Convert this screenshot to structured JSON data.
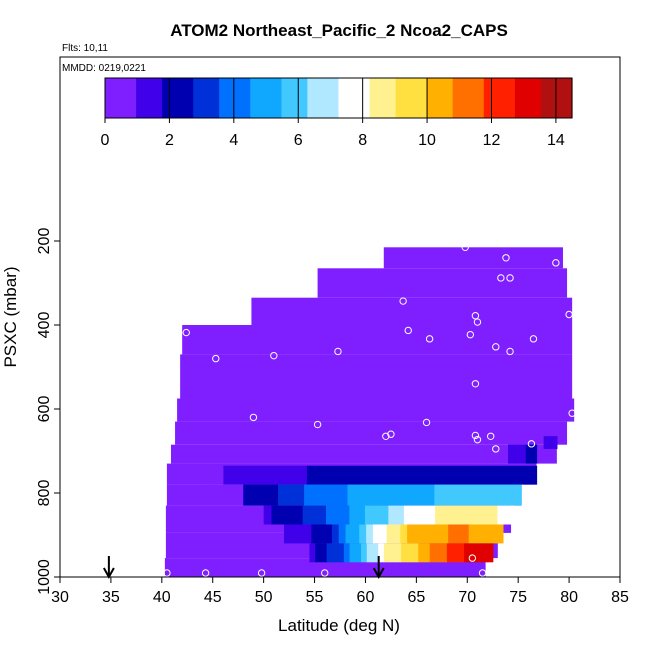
{
  "chart_data": {
    "type": "heatmap",
    "title": "ATOM2 Northeast_Pacific_2 Ncoa2_CAPS",
    "flights_label": "Flts: 10,11",
    "mmdd_label": "MMDD: 0219,0221",
    "xlabel": "Latitude (deg N)",
    "ylabel": "PSXC (mbar)",
    "xlim": [
      30,
      85
    ],
    "ylim": [
      1000,
      0
    ],
    "x_ticks": [
      "30",
      "35",
      "40",
      "45",
      "50",
      "55",
      "60",
      "65",
      "70",
      "75",
      "80",
      "85"
    ],
    "y_ticks": [
      "200",
      "400",
      "600",
      "800",
      "1000"
    ],
    "colorbar": {
      "range": [
        0,
        14.5
      ],
      "ticks": [
        "0",
        "2",
        "4",
        "6",
        "8",
        "10",
        "12",
        "14"
      ],
      "colors": [
        "#7f1fff",
        "#4000ea",
        "#0000b0",
        "#0030d8",
        "#0070ff",
        "#10a8ff",
        "#40c8ff",
        "#b0e8ff",
        "#ffffff",
        "#fff090",
        "#ffe040",
        "#ffb000",
        "#ff7000",
        "#ff2000",
        "#e00000",
        "#b01010"
      ]
    },
    "coverage_background_value": 0,
    "coverage": [
      {
        "lat": [
          40.3,
          71.8
        ],
        "p": [
          955,
          1000
        ]
      },
      {
        "lat": [
          40.4,
          73.0
        ],
        "p": [
          895,
          955
        ]
      },
      {
        "lat": [
          40.4,
          74.3
        ],
        "p": [
          830,
          895
        ]
      },
      {
        "lat": [
          40.5,
          75.3
        ],
        "p": [
          780,
          830
        ]
      },
      {
        "lat": [
          40.5,
          76.8
        ],
        "p": [
          730,
          780
        ]
      },
      {
        "lat": [
          40.9,
          78.8
        ],
        "p": [
          685,
          730
        ]
      },
      {
        "lat": [
          41.3,
          79.8
        ],
        "p": [
          630,
          685
        ]
      },
      {
        "lat": [
          41.5,
          80.5
        ],
        "p": [
          575,
          630
        ]
      },
      {
        "lat": [
          41.8,
          80.3
        ],
        "p": [
          470,
          575
        ]
      },
      {
        "lat": [
          42.0,
          80.3
        ],
        "p": [
          400,
          470
        ]
      },
      {
        "lat": [
          48.8,
          80.3
        ],
        "p": [
          335,
          400
        ]
      },
      {
        "lat": [
          55.3,
          79.8
        ],
        "p": [
          265,
          335
        ]
      },
      {
        "lat": [
          61.8,
          79.4
        ],
        "p": [
          215,
          265
        ]
      }
    ],
    "profiles": [
      {
        "p": [
          665,
          695
        ],
        "lat": [
          77.5,
          78.8
        ],
        "values": [
          1.5,
          1.0
        ]
      },
      {
        "p": [
          685,
          730
        ],
        "lat": [
          74.0,
          76.8
        ],
        "values": [
          1.2,
          2.2
        ]
      },
      {
        "p": [
          735,
          780
        ],
        "lat": [
          44.0,
          76.8
        ],
        "values": [
          0.6,
          1.6,
          2.3,
          2.3,
          2.6
        ]
      },
      {
        "p": [
          780,
          830
        ],
        "lat": [
          48.0,
          75.3
        ],
        "values": [
          1.8,
          3.8,
          5.2,
          5.5,
          5.8
        ]
      },
      {
        "p": [
          830,
          875
        ],
        "lat": [
          50.0,
          74.5
        ],
        "values": [
          1.5,
          3.0,
          5.2,
          7.8,
          8.6,
          8.0
        ]
      },
      {
        "p": [
          875,
          920
        ],
        "lat": [
          52.0,
          73.5
        ],
        "values": [
          0.8,
          2.5,
          7.0,
          10.5,
          11.0,
          10.2
        ]
      },
      {
        "p": [
          920,
          965
        ],
        "lat": [
          54.5,
          72.5
        ],
        "values": [
          1.2,
          4.0,
          8.0,
          10.0,
          12.5,
          13.5
        ]
      }
    ],
    "sample_points": [
      [
        69.8,
        215
      ],
      [
        73.8,
        240
      ],
      [
        78.7,
        252
      ],
      [
        73.3,
        288
      ],
      [
        74.2,
        288
      ],
      [
        63.7,
        343
      ],
      [
        80.0,
        375
      ],
      [
        70.8,
        378
      ],
      [
        71.0,
        393
      ],
      [
        42.4,
        418
      ],
      [
        64.2,
        413
      ],
      [
        70.3,
        423
      ],
      [
        66.3,
        433
      ],
      [
        76.5,
        433
      ],
      [
        72.8,
        452
      ],
      [
        74.2,
        463
      ],
      [
        57.3,
        463
      ],
      [
        51.0,
        473
      ],
      [
        45.3,
        480
      ],
      [
        70.8,
        540
      ],
      [
        80.3,
        610
      ],
      [
        49.0,
        620
      ],
      [
        55.3,
        637
      ],
      [
        66.0,
        632
      ],
      [
        62.5,
        660
      ],
      [
        62.0,
        665
      ],
      [
        70.8,
        663
      ],
      [
        71.0,
        673
      ],
      [
        72.3,
        665
      ],
      [
        76.3,
        683
      ],
      [
        72.8,
        695
      ],
      [
        40.2,
        725
      ],
      [
        70.5,
        955
      ],
      [
        56.0,
        1000
      ],
      [
        40.5,
        1005
      ],
      [
        44.3,
        1008
      ],
      [
        49.8,
        1005
      ],
      [
        71.5,
        1008
      ]
    ],
    "arrows_lat": [
      34.8,
      61.3
    ]
  }
}
